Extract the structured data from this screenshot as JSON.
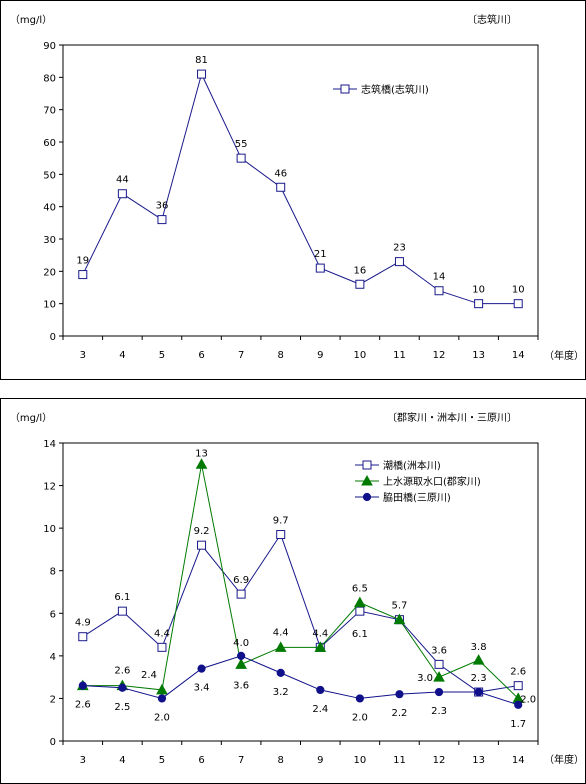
{
  "chart_data": [
    {
      "type": "line",
      "ylabel": "（mg/l）",
      "xlabel": "（年度）",
      "river_tag": "〔志筑川〕",
      "categories": [
        "3",
        "4",
        "5",
        "6",
        "7",
        "8",
        "9",
        "10",
        "11",
        "12",
        "13",
        "14"
      ],
      "ylim": [
        0,
        90
      ],
      "yticks": [
        0,
        10,
        20,
        30,
        40,
        50,
        60,
        70,
        80,
        90
      ],
      "grid": false,
      "legend": "right",
      "series": [
        {
          "name": "志筑橋(志筑川)",
          "marker": "open-square",
          "color": "#1a1a8c",
          "values": [
            19,
            44,
            36,
            81,
            55,
            46,
            21,
            16,
            23,
            14,
            10,
            10
          ],
          "labels": [
            "19",
            "44",
            "36",
            "81",
            "55",
            "46",
            "21",
            "16",
            "23",
            "14",
            "10",
            "10"
          ]
        }
      ]
    },
    {
      "type": "line",
      "ylabel": "（mg/l）",
      "xlabel": "（年度）",
      "river_tag": "〔郡家川・洲本川・三原川〕",
      "categories": [
        "3",
        "4",
        "5",
        "6",
        "7",
        "8",
        "9",
        "10",
        "11",
        "12",
        "13",
        "14"
      ],
      "ylim": [
        0,
        14
      ],
      "yticks": [
        0,
        2,
        4,
        6,
        8,
        10,
        12,
        14
      ],
      "grid": false,
      "legend": "right",
      "series": [
        {
          "name": "潮橋(洲本川)",
          "marker": "open-square",
          "color": "#1a1a8c",
          "values": [
            4.9,
            6.1,
            4.4,
            9.2,
            6.9,
            9.7,
            4.4,
            6.1,
            5.7,
            3.6,
            2.3,
            2.6
          ],
          "labels": [
            "4.9",
            "6.1",
            "4.4",
            "9.2",
            "6.9",
            "9.7",
            "4.4",
            "6.1",
            "5.7",
            "3.6",
            "2.3",
            "2.6"
          ]
        },
        {
          "name": "上水源取水口(郡家川)",
          "marker": "triangle",
          "color": "#007a00",
          "values": [
            2.6,
            2.6,
            2.4,
            13,
            3.6,
            4.4,
            4.4,
            6.5,
            5.7,
            3.0,
            3.8,
            2.0
          ],
          "labels": [
            "2.6",
            "2.6",
            "2.4",
            "13",
            "3.6",
            "4.4",
            "",
            "6.5",
            "",
            "3.0",
            "3.8",
            "2.0"
          ]
        },
        {
          "name": "脇田橋(三原川)",
          "marker": "filled-circle",
          "color": "#10108a",
          "values": [
            2.6,
            2.5,
            2.0,
            3.4,
            4.0,
            3.2,
            2.4,
            2.0,
            2.2,
            2.3,
            2.3,
            1.7
          ],
          "labels": [
            "",
            "2.5",
            "2.0",
            "3.4",
            "4.0",
            "3.2",
            "2.4",
            "2.0",
            "2.2",
            "2.3",
            "",
            "1.7"
          ]
        }
      ]
    }
  ]
}
